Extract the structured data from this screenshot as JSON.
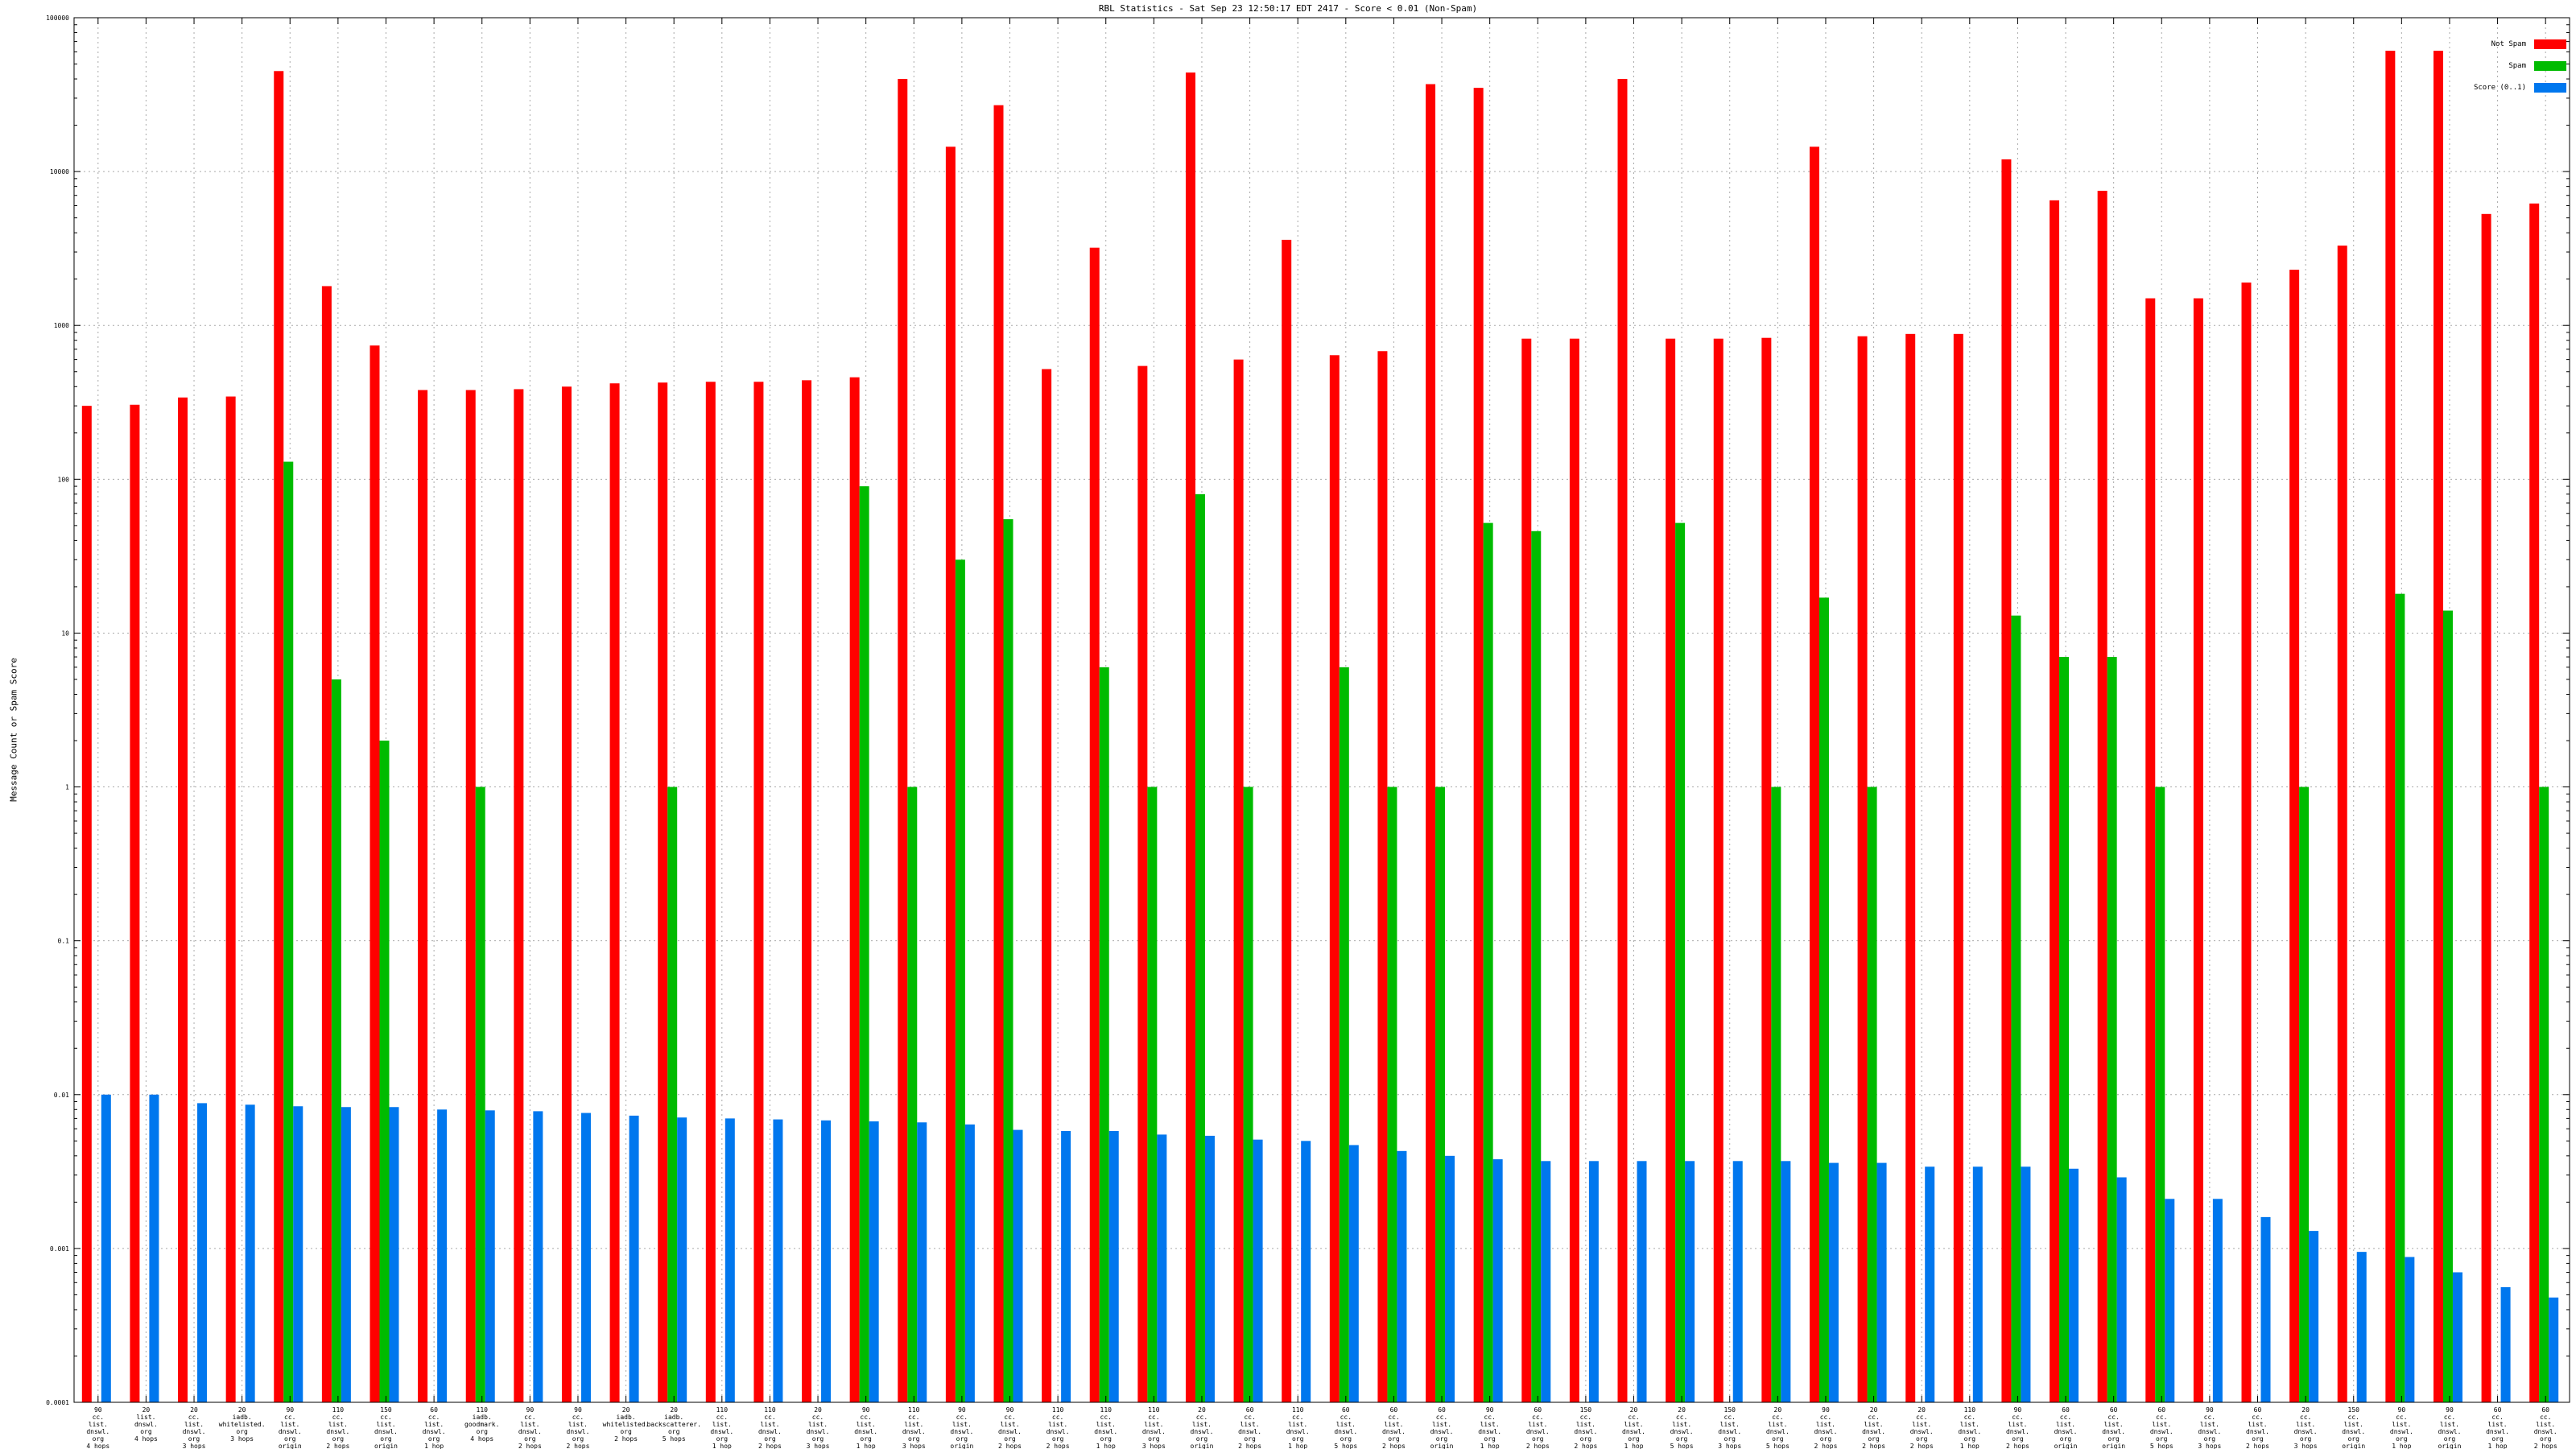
{
  "chart_data": {
    "type": "bar",
    "title": "RBL Statistics - Sat Sep 23 12:50:17 EDT 2417 - Score < 0.01 (Non-Spam)",
    "ylabel": "Message Count or Spam Score",
    "xlabel": "",
    "yscale": "log",
    "ylim": [
      0.0001,
      100000
    ],
    "grid": true,
    "legend_position": "top-right",
    "yticks": [
      "0.0001",
      "0.001",
      "0.01",
      "0.1",
      "1",
      "10",
      "100",
      "1000",
      "10000",
      "100000"
    ],
    "categories": [
      [
        "90",
        "cc.",
        "list.",
        "dnswl.",
        "org",
        "4 hops"
      ],
      [
        "20",
        "list.",
        "dnswl.",
        "org",
        "4 hops"
      ],
      [
        "20",
        "cc.",
        "list.",
        "dnswl.",
        "org",
        "3 hops"
      ],
      [
        "20",
        "iadb.",
        "whitelisted.",
        "org",
        "3 hops"
      ],
      [
        "90",
        "cc.",
        "list.",
        "dnswl.",
        "org",
        "origin"
      ],
      [
        "110",
        "cc.",
        "list.",
        "dnswl.",
        "org",
        "2 hops"
      ],
      [
        "150",
        "cc.",
        "list.",
        "dnswl.",
        "org",
        "origin"
      ],
      [
        "60",
        "cc.",
        "list.",
        "dnswl.",
        "org",
        "1 hop"
      ],
      [
        "110",
        "iadb.",
        "goodmark.",
        "org",
        "4 hops"
      ],
      [
        "90",
        "cc.",
        "list.",
        "dnswl.",
        "org",
        "2 hops"
      ],
      [
        "90",
        "cc.",
        "list.",
        "dnswl.",
        "org",
        "2 hops"
      ],
      [
        "20",
        "iadb.",
        "whitelisted.",
        "org",
        "2 hops"
      ],
      [
        "20",
        "iadb.",
        "backscatterer.",
        "org",
        "5 hops"
      ],
      [
        "110",
        "cc.",
        "list.",
        "dnswl.",
        "org",
        "1 hop"
      ],
      [
        "110",
        "cc.",
        "list.",
        "dnswl.",
        "org",
        "2 hops"
      ],
      [
        "20",
        "cc.",
        "list.",
        "dnswl.",
        "org",
        "3 hops"
      ],
      [
        "90",
        "cc.",
        "list.",
        "dnswl.",
        "org",
        "1 hop"
      ],
      [
        "110",
        "cc.",
        "list.",
        "dnswl.",
        "org",
        "3 hops"
      ],
      [
        "90",
        "cc.",
        "list.",
        "dnswl.",
        "org",
        "origin"
      ],
      [
        "90",
        "cc.",
        "list.",
        "dnswl.",
        "org",
        "2 hops"
      ],
      [
        "110",
        "cc.",
        "list.",
        "dnswl.",
        "org",
        "2 hops"
      ],
      [
        "110",
        "cc.",
        "list.",
        "dnswl.",
        "org",
        "1 hop"
      ],
      [
        "110",
        "cc.",
        "list.",
        "dnswl.",
        "org",
        "3 hops"
      ],
      [
        "20",
        "cc.",
        "list.",
        "dnswl.",
        "org",
        "origin"
      ],
      [
        "60",
        "cc.",
        "list.",
        "dnswl.",
        "org",
        "2 hops"
      ],
      [
        "110",
        "cc.",
        "list.",
        "dnswl.",
        "org",
        "1 hop"
      ],
      [
        "60",
        "cc.",
        "list.",
        "dnswl.",
        "org",
        "5 hops"
      ],
      [
        "60",
        "cc.",
        "list.",
        "dnswl.",
        "org",
        "2 hops"
      ],
      [
        "60",
        "cc.",
        "list.",
        "dnswl.",
        "org",
        "origin"
      ],
      [
        "90",
        "cc.",
        "list.",
        "dnswl.",
        "org",
        "1 hop"
      ],
      [
        "60",
        "cc.",
        "list.",
        "dnswl.",
        "org",
        "2 hops"
      ],
      [
        "150",
        "cc.",
        "list.",
        "dnswl.",
        "org",
        "2 hops"
      ],
      [
        "20",
        "cc.",
        "list.",
        "dnswl.",
        "org",
        "1 hop"
      ],
      [
        "20",
        "cc.",
        "list.",
        "dnswl.",
        "org",
        "5 hops"
      ],
      [
        "150",
        "cc.",
        "list.",
        "dnswl.",
        "org",
        "3 hops"
      ],
      [
        "20",
        "cc.",
        "list.",
        "dnswl.",
        "org",
        "5 hops"
      ],
      [
        "90",
        "cc.",
        "list.",
        "dnswl.",
        "org",
        "2 hops"
      ],
      [
        "20",
        "cc.",
        "list.",
        "dnswl.",
        "org",
        "2 hops"
      ],
      [
        "20",
        "cc.",
        "list.",
        "dnswl.",
        "org",
        "2 hops"
      ],
      [
        "110",
        "cc.",
        "list.",
        "dnswl.",
        "org",
        "1 hop"
      ],
      [
        "90",
        "cc.",
        "list.",
        "dnswl.",
        "org",
        "2 hops"
      ],
      [
        "60",
        "cc.",
        "list.",
        "dnswl.",
        "org",
        "origin"
      ],
      [
        "60",
        "cc.",
        "list.",
        "dnswl.",
        "org",
        "origin"
      ],
      [
        "60",
        "cc.",
        "list.",
        "dnswl.",
        "org",
        "5 hops"
      ],
      [
        "90",
        "cc.",
        "list.",
        "dnswl.",
        "org",
        "3 hops"
      ],
      [
        "60",
        "cc.",
        "list.",
        "dnswl.",
        "org",
        "2 hops"
      ],
      [
        "20",
        "cc.",
        "list.",
        "dnswl.",
        "org",
        "3 hops"
      ],
      [
        "150",
        "cc.",
        "list.",
        "dnswl.",
        "org",
        "origin"
      ],
      [
        "90",
        "cc.",
        "list.",
        "dnswl.",
        "org",
        "1 hop"
      ],
      [
        "90",
        "cc.",
        "list.",
        "dnswl.",
        "org",
        "origin"
      ],
      [
        "60",
        "cc.",
        "list.",
        "dnswl.",
        "org",
        "1 hop"
      ],
      [
        "60",
        "cc.",
        "list.",
        "dnswl.",
        "org",
        "2 hops"
      ]
    ],
    "series": [
      {
        "name": "Not Spam",
        "color": "#ff0000",
        "values": [
          300,
          305,
          340,
          345,
          45000,
          1800,
          740,
          380,
          380,
          385,
          400,
          420,
          425,
          430,
          430,
          440,
          460,
          40000,
          14500,
          27000,
          520,
          3200,
          545,
          44000,
          600,
          3600,
          640,
          680,
          37000,
          35000,
          820,
          820,
          40000,
          820,
          820,
          830,
          14500,
          850,
          880,
          880,
          12000,
          6500,
          7500,
          1500,
          1500,
          1900,
          2300,
          3300,
          61000,
          61000,
          5300,
          6200
        ]
      },
      {
        "name": "Spam",
        "color": "#00bb00",
        "values": [
          null,
          null,
          null,
          null,
          130,
          5,
          2,
          null,
          1,
          null,
          null,
          null,
          1,
          null,
          null,
          null,
          90,
          1,
          30,
          55,
          null,
          6,
          1,
          80,
          1,
          null,
          6,
          1,
          1,
          52,
          46,
          null,
          null,
          52,
          null,
          1,
          17,
          1,
          null,
          null,
          13,
          7,
          7,
          1,
          null,
          null,
          1,
          null,
          18,
          14,
          null,
          1
        ]
      },
      {
        "name": "Score (0..1)",
        "color": "#0077ee",
        "values": [
          0.01,
          0.01,
          0.0088,
          0.0086,
          0.0084,
          0.0083,
          0.0083,
          0.008,
          0.0079,
          0.0078,
          0.0076,
          0.0073,
          0.0071,
          0.007,
          0.0069,
          0.0068,
          0.0067,
          0.0066,
          0.0064,
          0.0059,
          0.0058,
          0.0058,
          0.0055,
          0.0054,
          0.0051,
          0.005,
          0.0047,
          0.0043,
          0.004,
          0.0038,
          0.0037,
          0.0037,
          0.0037,
          0.0037,
          0.0037,
          0.0037,
          0.0036,
          0.0036,
          0.0034,
          0.0034,
          0.0034,
          0.0033,
          0.0029,
          0.0021,
          0.0021,
          0.0016,
          0.0013,
          0.00095,
          0.00088,
          0.0007,
          0.00056,
          0.00048
        ]
      }
    ]
  }
}
